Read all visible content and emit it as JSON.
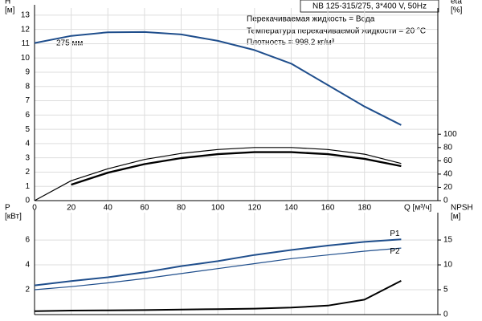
{
  "chart_data": [
    {
      "type": "line",
      "title": "NB 125-315/275, 3*400 V, 50Hz",
      "annotations": [
        "275 мм",
        "Перекачиваемая жидкость = Вода",
        "Температура перекачиваемой жидкости = 20 °C",
        "Плотность = 998.2 кг/м³"
      ],
      "xlabel": "Q [м³/ч]",
      "ylabel": [
        "H",
        "[м]"
      ],
      "y2label": [
        "eta",
        "[%]"
      ],
      "x": [
        0,
        20,
        40,
        60,
        80,
        100,
        120,
        140,
        160,
        180,
        200
      ],
      "xlim": [
        0,
        220
      ],
      "xticks": [
        0,
        20,
        40,
        60,
        80,
        100,
        120,
        140,
        160,
        180
      ],
      "ylim": [
        0,
        13.5
      ],
      "yticks": [
        0,
        1,
        2,
        3,
        4,
        5,
        6,
        7,
        8,
        9,
        10,
        11,
        12,
        13
      ],
      "y2lim": [
        0,
        290
      ],
      "y2ticks": [
        0,
        20,
        40,
        60,
        80,
        100
      ],
      "grid": true,
      "series": [
        {
          "color": "#1f4e8c",
          "width": 2,
          "values": [
            11.05,
            11.55,
            11.8,
            11.82,
            11.65,
            11.2,
            10.55,
            9.6,
            8.1,
            6.6,
            5.3
          ]
        },
        {
          "color": "#000000",
          "width": 1.2,
          "axis": "y2",
          "values": [
            0,
            30,
            48,
            62,
            71,
            77,
            80,
            80,
            77,
            70,
            56
          ]
        },
        {
          "color": "#000000",
          "width": 2.4,
          "axis": "y2",
          "values": [
            null,
            24,
            42,
            55,
            64,
            70,
            73,
            73,
            70,
            63,
            52
          ]
        }
      ]
    },
    {
      "type": "line",
      "ylabel": [
        "P",
        "[кВт]"
      ],
      "y2label": [
        "NPSH",
        "[м]"
      ],
      "x": [
        0,
        20,
        40,
        60,
        80,
        100,
        120,
        140,
        160,
        180,
        200
      ],
      "xlim": [
        0,
        220
      ],
      "xticks": [
        0,
        20,
        40,
        60,
        80,
        100,
        120,
        140,
        160,
        180
      ],
      "ylim": [
        0,
        8.2
      ],
      "yticks": [
        2,
        4,
        6
      ],
      "y2lim": [
        0,
        20.5
      ],
      "y2ticks": [
        0,
        5,
        10,
        15
      ],
      "grid": true,
      "series": [
        {
          "name": "P1",
          "color": "#1f4e8c",
          "width": 2,
          "values": [
            2.35,
            2.7,
            3.0,
            3.4,
            3.9,
            4.3,
            4.8,
            5.2,
            5.55,
            5.85,
            6.05
          ]
        },
        {
          "name": "P2",
          "color": "#1f4e8c",
          "width": 1.2,
          "values": [
            2.0,
            2.25,
            2.55,
            2.9,
            3.3,
            3.7,
            4.1,
            4.5,
            4.8,
            5.1,
            5.35
          ]
        },
        {
          "color": "#000000",
          "width": 2,
          "axis": "y2",
          "values": [
            0.7,
            0.8,
            0.85,
            0.9,
            1.0,
            1.1,
            1.2,
            1.4,
            1.8,
            3.0,
            6.8
          ]
        }
      ]
    }
  ]
}
